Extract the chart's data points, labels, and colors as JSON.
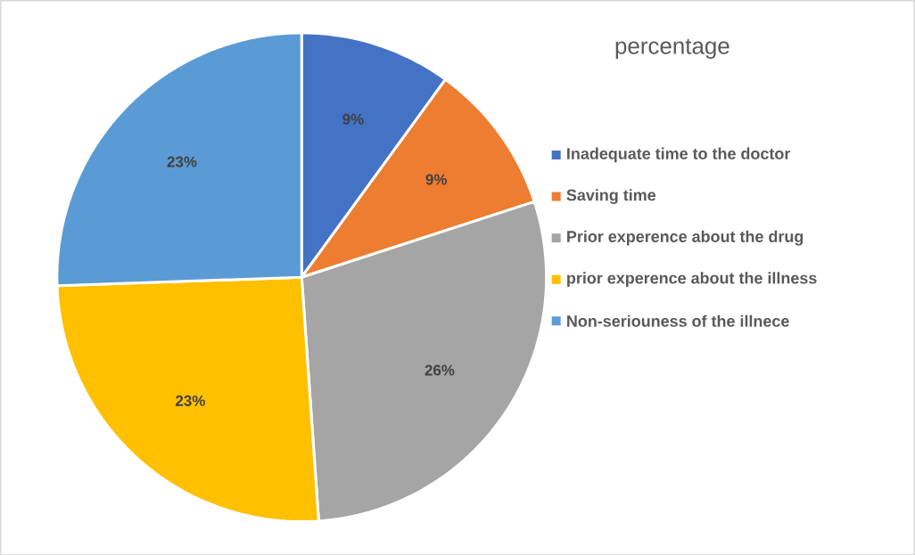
{
  "chart_data": {
    "type": "pie",
    "title": "percentage",
    "categories": [
      "Inadequate time to the doctor",
      "Saving time",
      "Prior experence about the drug",
      "prior experence about the illness",
      "Non-seriouness of the illnece"
    ],
    "values": [
      9,
      9,
      26,
      23,
      23
    ],
    "value_labels": [
      "9%",
      "9%",
      "26%",
      "23%",
      "23%"
    ],
    "colors": [
      "#4472c4",
      "#ed7d31",
      "#a5a5a5",
      "#ffc000",
      "#5b9bd5"
    ],
    "legend": "right"
  }
}
